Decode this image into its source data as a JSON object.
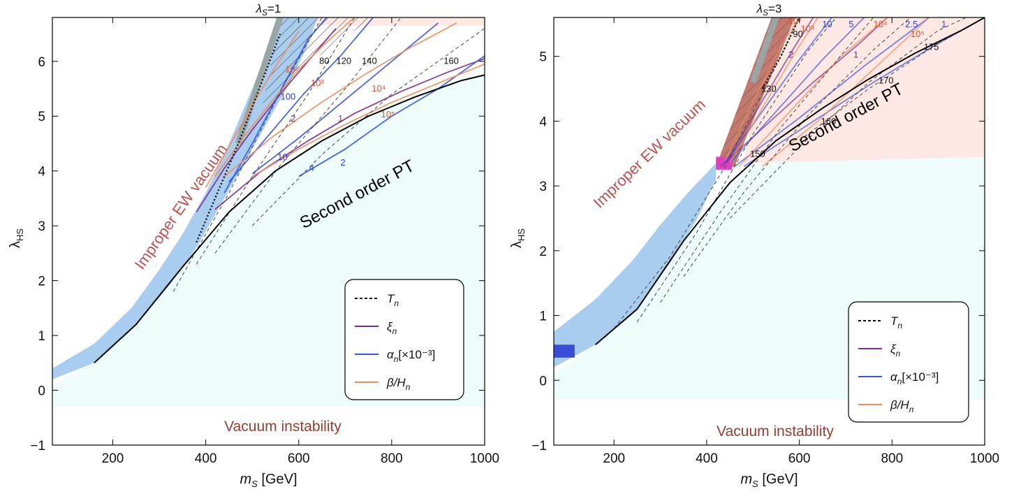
{
  "chart_data": [
    {
      "type": "line",
      "title_prefix": "λ",
      "title_sub": "S",
      "title_value": "=1",
      "xlabel_main": "m",
      "xlabel_sub": "S",
      "xlabel_unit": " [GeV]",
      "ylabel_main": "λ",
      "ylabel_sub": "HS",
      "xlim": [
        70,
        1000
      ],
      "ylim": [
        -1,
        6.8
      ],
      "xticks": [
        "200",
        "400",
        "600",
        "800",
        "1000"
      ],
      "xtick_values": [
        200,
        400,
        600,
        800,
        1000
      ],
      "yticks": [
        "−1",
        "0",
        "1",
        "2",
        "3",
        "4",
        "5",
        "6"
      ],
      "ytick_values": [
        -1,
        0,
        1,
        2,
        3,
        4,
        5,
        6
      ],
      "region_labels": {
        "improper": "Improper EW vacuum",
        "second_order": "Second order PT",
        "instability": "Vacuum instability"
      },
      "legend": [
        {
          "name": "T",
          "sub": "n",
          "style": "dashed",
          "color": "#000000"
        },
        {
          "name": "ξ",
          "sub": "n",
          "style": "solid",
          "color": "#7b2d8e"
        },
        {
          "name": "α",
          "sub": "n",
          "suffix": "[×10⁻³]",
          "style": "solid",
          "color": "#3355ee"
        },
        {
          "name": "β/H",
          "sub": "n",
          "style": "solid",
          "color": "#f08c5a"
        }
      ],
      "boundary": {
        "name": "second-order boundary",
        "x": [
          160,
          250,
          350,
          450,
          550,
          650,
          750,
          850,
          950,
          1000
        ],
        "y": [
          0.5,
          1.2,
          2.25,
          3.25,
          4.0,
          4.55,
          5.0,
          5.35,
          5.65,
          5.75
        ]
      },
      "series": [
        {
          "name": "ξn=1",
          "type": "xi",
          "label": "1",
          "x": [
            420,
            520,
            620,
            720,
            820,
            920,
            1000
          ],
          "y": [
            3.3,
            4.0,
            4.55,
            5.05,
            5.45,
            5.8,
            6.05
          ]
        },
        {
          "name": "ξn=2",
          "type": "xi",
          "label": "2",
          "x": [
            380,
            440,
            500,
            560,
            620,
            680
          ],
          "y": [
            3.25,
            4.05,
            4.75,
            5.4,
            6.0,
            6.6
          ]
        },
        {
          "name": "αn=2",
          "type": "alpha",
          "label": "2",
          "x": [
            600,
            700,
            800,
            900,
            1000
          ],
          "y": [
            3.9,
            4.4,
            5.0,
            5.5,
            6.1
          ]
        },
        {
          "name": "αn=4",
          "type": "alpha",
          "label": "4",
          "x": [
            500,
            600,
            700,
            800,
            900
          ],
          "y": [
            3.95,
            4.6,
            5.3,
            6.0,
            6.7
          ]
        },
        {
          "name": "αn=10",
          "type": "alpha",
          "label": "10",
          "x": [
            450,
            530,
            610,
            690,
            760
          ],
          "y": [
            3.8,
            4.6,
            5.4,
            6.1,
            6.8
          ]
        },
        {
          "name": "αn=100",
          "type": "alpha",
          "label": "100",
          "x": [
            440,
            500,
            560,
            620,
            660
          ],
          "y": [
            3.6,
            4.5,
            5.45,
            6.4,
            6.8
          ]
        },
        {
          "name": "β/Hn=10^5",
          "type": "beta",
          "label": "10⁵",
          "x": [
            500,
            600,
            700,
            800,
            900,
            1000
          ],
          "y": [
            3.9,
            4.4,
            4.85,
            5.25,
            5.6,
            5.95
          ]
        },
        {
          "name": "β/Hn=10^4",
          "type": "beta",
          "label": "10⁴",
          "x": [
            440,
            540,
            640,
            740,
            840,
            940
          ],
          "y": [
            3.9,
            4.6,
            5.2,
            5.75,
            6.25,
            6.7
          ]
        },
        {
          "name": "β/Hn=10^3",
          "type": "beta",
          "label": "10³",
          "x": [
            420,
            480,
            540,
            600,
            660,
            720
          ],
          "y": [
            3.9,
            4.6,
            5.25,
            5.85,
            6.35,
            6.8
          ]
        },
        {
          "name": "β/Hn=10^2",
          "type": "beta",
          "label": "10²",
          "x": [
            400,
            450,
            500,
            550,
            600
          ],
          "y": [
            3.7,
            4.45,
            5.2,
            5.9,
            6.55
          ]
        },
        {
          "name": "Tn=80",
          "type": "tn",
          "label": "80",
          "x": [
            330,
            450,
            570,
            650
          ],
          "y": [
            1.8,
            3.6,
            5.6,
            6.8
          ]
        },
        {
          "name": "Tn=120",
          "type": "tn",
          "label": "120",
          "x": [
            380,
            500,
            620,
            720
          ],
          "y": [
            2.3,
            3.9,
            5.4,
            6.8
          ]
        },
        {
          "name": "Tn=140",
          "type": "tn",
          "label": "140",
          "x": [
            420,
            560,
            700,
            820
          ],
          "y": [
            2.5,
            4.1,
            5.5,
            6.8
          ]
        },
        {
          "name": "Tn=160",
          "type": "tn",
          "label": "160",
          "x": [
            500,
            650,
            800,
            1000
          ],
          "y": [
            3.0,
            4.3,
            5.4,
            6.6
          ]
        }
      ],
      "contour_labels": [
        {
          "text": "80",
          "x": 655,
          "y": 5.95,
          "type": "tn"
        },
        {
          "text": "120",
          "x": 697,
          "y": 5.95,
          "type": "tn"
        },
        {
          "text": "140",
          "x": 752,
          "y": 5.95,
          "type": "tn"
        },
        {
          "text": "160",
          "x": 928,
          "y": 5.95,
          "type": "tn"
        },
        {
          "text": "10²",
          "x": 585,
          "y": 5.8,
          "type": "beta"
        },
        {
          "text": "10³",
          "x": 640,
          "y": 5.55,
          "type": "beta"
        },
        {
          "text": "10⁴",
          "x": 772,
          "y": 5.45,
          "type": "beta"
        },
        {
          "text": "10⁵",
          "x": 792,
          "y": 4.98,
          "type": "beta"
        },
        {
          "text": "100",
          "x": 577,
          "y": 5.3,
          "type": "alpha"
        },
        {
          "text": "10",
          "x": 565,
          "y": 4.2,
          "type": "alpha"
        },
        {
          "text": "4",
          "x": 628,
          "y": 4.0,
          "type": "alpha"
        },
        {
          "text": "2",
          "x": 695,
          "y": 4.1,
          "type": "alpha"
        },
        {
          "text": "2",
          "x": 588,
          "y": 4.9,
          "type": "xi"
        },
        {
          "text": "1",
          "x": 690,
          "y": 4.9,
          "type": "xi"
        }
      ]
    },
    {
      "type": "line",
      "title_prefix": "λ",
      "title_sub": "S",
      "title_value": "=3",
      "xlabel_main": "m",
      "xlabel_sub": "S",
      "xlabel_unit": " [GeV]",
      "ylabel_main": "λ",
      "ylabel_sub": "HS",
      "xlim": [
        70,
        1000
      ],
      "ylim": [
        -1,
        5.6
      ],
      "xticks": [
        "200",
        "400",
        "600",
        "800",
        "1000"
      ],
      "xtick_values": [
        200,
        400,
        600,
        800,
        1000
      ],
      "yticks": [
        "−1",
        "0",
        "1",
        "2",
        "3",
        "4",
        "5"
      ],
      "ytick_values": [
        -1,
        0,
        1,
        2,
        3,
        4,
        5
      ],
      "region_labels": {
        "improper": "Improper EW vacuum",
        "second_order": "Second order PT",
        "instability": "Vacuum instability"
      },
      "legend": [
        {
          "name": "T",
          "sub": "n",
          "style": "dashed",
          "color": "#000000"
        },
        {
          "name": "ξ",
          "sub": "n",
          "style": "solid",
          "color": "#7b2d8e"
        },
        {
          "name": "α",
          "sub": "n",
          "suffix": "[×10⁻³]",
          "style": "solid",
          "color": "#3355ee"
        },
        {
          "name": "β/H",
          "sub": "n",
          "style": "solid",
          "color": "#f08c5a"
        }
      ],
      "boundary": {
        "name": "second-order boundary",
        "x": [
          160,
          250,
          350,
          450,
          550,
          650,
          750,
          850,
          950,
          1000
        ],
        "y": [
          0.55,
          1.1,
          2.15,
          3.05,
          3.7,
          4.2,
          4.65,
          5.05,
          5.4,
          5.6
        ]
      },
      "series": [
        {
          "name": "ξn=1",
          "type": "xi",
          "label": "1",
          "x": [
            430,
            530,
            630,
            730,
            790
          ],
          "y": [
            3.3,
            3.95,
            4.6,
            5.2,
            5.6
          ]
        },
        {
          "name": "ξn=2",
          "type": "xi",
          "label": "2",
          "x": [
            440,
            490,
            540,
            590,
            630
          ],
          "y": [
            3.35,
            3.95,
            4.55,
            5.15,
            5.6
          ]
        },
        {
          "name": "αn=1",
          "type": "alpha",
          "label": "1",
          "x": [
            480,
            620,
            760,
            900,
            1000
          ],
          "y": [
            3.3,
            3.95,
            4.6,
            5.2,
            5.6
          ]
        },
        {
          "name": "αn=2.5",
          "type": "alpha",
          "label": "2.5",
          "x": [
            460,
            600,
            740,
            880
          ],
          "y": [
            3.3,
            4.05,
            4.85,
            5.6
          ]
        },
        {
          "name": "αn=5",
          "type": "alpha",
          "label": "5",
          "x": [
            450,
            550,
            650,
            740
          ],
          "y": [
            3.35,
            4.15,
            4.95,
            5.6
          ]
        },
        {
          "name": "αn=10",
          "type": "alpha",
          "label": "10",
          "x": [
            440,
            520,
            600,
            670
          ],
          "y": [
            3.35,
            4.15,
            4.95,
            5.6
          ]
        },
        {
          "name": "β/Hn=10^5",
          "type": "beta",
          "label": "10⁵",
          "x": [
            520,
            640,
            760,
            880
          ],
          "y": [
            3.3,
            4.0,
            4.8,
            5.6
          ]
        },
        {
          "name": "β/Hn=10^4",
          "type": "beta",
          "label": "10⁴",
          "x": [
            470,
            580,
            690,
            790
          ],
          "y": [
            3.3,
            4.15,
            5.0,
            5.6
          ]
        },
        {
          "name": "β/Hn=10^3",
          "type": "beta",
          "label": "10³",
          "x": [
            450,
            520,
            590,
            640
          ],
          "y": [
            3.35,
            4.2,
            5.05,
            5.6
          ]
        },
        {
          "name": "β/Hn=10^2",
          "type": "beta",
          "label": "10²",
          "x": [
            440,
            500,
            560,
            600
          ],
          "y": [
            3.4,
            4.3,
            5.15,
            5.6
          ]
        },
        {
          "name": "Tn=90",
          "type": "tn",
          "label": "90",
          "x": [
            200,
            320,
            440,
            560,
            600
          ],
          "y": [
            0.8,
            1.9,
            3.3,
            5.0,
            5.6
          ]
        },
        {
          "name": "Tn=130",
          "type": "tn",
          "label": "130",
          "x": [
            250,
            380,
            500,
            620,
            680
          ],
          "y": [
            0.9,
            2.3,
            3.8,
            5.1,
            5.6
          ]
        },
        {
          "name": "Tn=150",
          "type": "tn",
          "label": "150",
          "x": [
            300,
            430,
            560,
            700,
            760
          ],
          "y": [
            1.2,
            2.6,
            3.9,
            5.1,
            5.6
          ]
        },
        {
          "name": "Tn=160",
          "type": "tn",
          "label": "160",
          "x": [
            350,
            480,
            620,
            760,
            840
          ],
          "y": [
            1.6,
            2.9,
            4.1,
            5.1,
            5.6
          ]
        },
        {
          "name": "Tn=170",
          "type": "tn",
          "label": "170",
          "x": [
            450,
            600,
            750,
            900,
            960
          ],
          "y": [
            2.5,
            3.6,
            4.6,
            5.4,
            5.6
          ]
        },
        {
          "name": "Tn=175",
          "type": "tn",
          "label": "175",
          "x": [
            600,
            750,
            900,
            1000
          ],
          "y": [
            3.7,
            4.5,
            5.2,
            5.6
          ]
        }
      ],
      "contour_labels": [
        {
          "text": "90",
          "x": 597,
          "y": 5.3,
          "type": "tn"
        },
        {
          "text": "130",
          "x": 534,
          "y": 4.45,
          "type": "tn"
        },
        {
          "text": "150",
          "x": 510,
          "y": 3.45,
          "type": "tn"
        },
        {
          "text": "160",
          "x": 663,
          "y": 3.95,
          "type": "tn"
        },
        {
          "text": "170",
          "x": 787,
          "y": 4.58,
          "type": "tn"
        },
        {
          "text": "175",
          "x": 885,
          "y": 5.1,
          "type": "tn"
        },
        {
          "text": "10²",
          "x": 590,
          "y": 5.5,
          "type": "beta"
        },
        {
          "text": "10³",
          "x": 617,
          "y": 5.38,
          "type": "beta"
        },
        {
          "text": "10⁴",
          "x": 775,
          "y": 5.45,
          "type": "beta"
        },
        {
          "text": "10⁵",
          "x": 855,
          "y": 5.3,
          "type": "beta"
        },
        {
          "text": "10",
          "x": 660,
          "y": 5.45,
          "type": "alpha"
        },
        {
          "text": "5",
          "x": 712,
          "y": 5.45,
          "type": "alpha"
        },
        {
          "text": "2.5",
          "x": 842,
          "y": 5.45,
          "type": "alpha"
        },
        {
          "text": "1",
          "x": 912,
          "y": 5.45,
          "type": "alpha"
        },
        {
          "text": "2",
          "x": 582,
          "y": 4.98,
          "type": "xi"
        },
        {
          "text": "1",
          "x": 722,
          "y": 4.98,
          "type": "xi"
        }
      ]
    }
  ]
}
